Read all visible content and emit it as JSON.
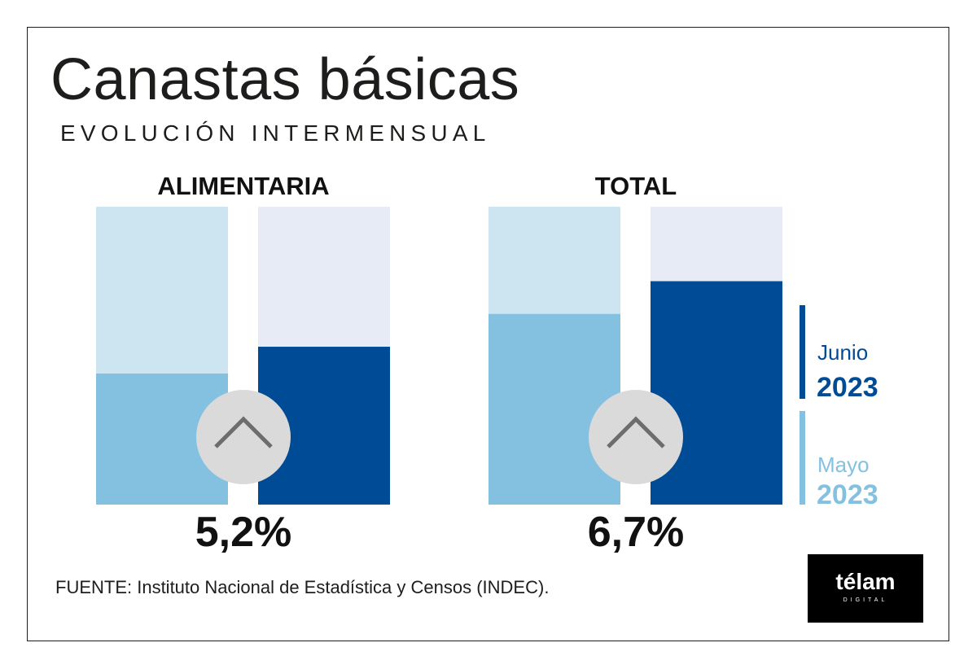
{
  "title": "Canastas básicas",
  "subtitle": "EVOLUCIÓN INTERMENSUAL",
  "chart_data": {
    "type": "bar",
    "series": [
      {
        "name": "Mayo 2023",
        "color": "#84c1e0",
        "track_color": "#cde4f1"
      },
      {
        "name": "Junio 2023",
        "color": "#004b96",
        "track_color": "#e6ebf5"
      }
    ],
    "panels": [
      {
        "label": "ALIMENTARIA",
        "values": [
          0.44,
          0.53
        ],
        "change": "5,2%",
        "indicator": "up-arrow-icon"
      },
      {
        "label": "TOTAL",
        "values": [
          0.64,
          0.75
        ],
        "change": "6,7%",
        "indicator": "up-arrow-icon"
      }
    ],
    "value_scale": "fraction of bar track filled",
    "legend": [
      {
        "month": "Junio",
        "year": "2023",
        "color": "#004b96"
      },
      {
        "month": "Mayo",
        "year": "2023",
        "color": "#84c1e0"
      }
    ],
    "legend_position": "right"
  },
  "source": "FUENTE: Instituto Nacional de Estadística y Censos (INDEC).",
  "logo": {
    "word": "télam",
    "sub": "DIGITAL"
  }
}
